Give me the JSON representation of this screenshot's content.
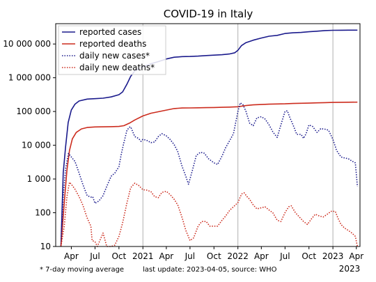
{
  "chart_data": {
    "type": "line",
    "title": "COVID-19 in Italy",
    "y_scale": "log",
    "ylim": [
      10,
      40000000
    ],
    "xlim": [
      "2020-02-01",
      "2023-04-15"
    ],
    "grid": "vertical lines at year boundaries",
    "legend_position": "top-left",
    "y_ticks": [
      {
        "value": 10,
        "label": "10"
      },
      {
        "value": 100,
        "label": "100"
      },
      {
        "value": 1000,
        "label": "1 000"
      },
      {
        "value": 10000,
        "label": "10 000"
      },
      {
        "value": 100000,
        "label": "100 000"
      },
      {
        "value": 1000000,
        "label": "1 000 000"
      },
      {
        "value": 10000000,
        "label": "10 000 000"
      }
    ],
    "x_ticks": [
      {
        "date": "2020-04-01",
        "label": "Apr"
      },
      {
        "date": "2020-07-01",
        "label": "Jul"
      },
      {
        "date": "2020-10-01",
        "label": "Oct"
      },
      {
        "date": "2021-01-01",
        "label": "2021"
      },
      {
        "date": "2021-04-01",
        "label": "Apr"
      },
      {
        "date": "2021-07-01",
        "label": "Jul"
      },
      {
        "date": "2021-10-01",
        "label": "Oct"
      },
      {
        "date": "2022-01-01",
        "label": "2022"
      },
      {
        "date": "2022-04-01",
        "label": "Apr"
      },
      {
        "date": "2022-07-01",
        "label": "Jul"
      },
      {
        "date": "2022-10-01",
        "label": "Oct"
      },
      {
        "date": "2023-01-01",
        "label": "2023"
      },
      {
        "date": "2023-04-01",
        "label": "Apr"
      }
    ],
    "x_axis_year_label": "2023",
    "series": [
      {
        "name": "reported cases",
        "color": "#1a1a8c",
        "style": "solid",
        "points": [
          [
            "2020-02-21",
            10
          ],
          [
            "2020-03-01",
            1500
          ],
          [
            "2020-03-10",
            9000
          ],
          [
            "2020-03-20",
            47000
          ],
          [
            "2020-04-01",
            110000
          ],
          [
            "2020-04-15",
            165000
          ],
          [
            "2020-05-01",
            205000
          ],
          [
            "2020-06-01",
            233000
          ],
          [
            "2020-07-01",
            240000
          ],
          [
            "2020-08-01",
            248000
          ],
          [
            "2020-09-01",
            270000
          ],
          [
            "2020-10-01",
            315000
          ],
          [
            "2020-10-15",
            380000
          ],
          [
            "2020-11-01",
            650000
          ],
          [
            "2020-11-15",
            1100000
          ],
          [
            "2020-12-01",
            1600000
          ],
          [
            "2021-01-01",
            2100000
          ],
          [
            "2021-02-01",
            2600000
          ],
          [
            "2021-03-01",
            3000000
          ],
          [
            "2021-04-01",
            3600000
          ],
          [
            "2021-05-01",
            4050000
          ],
          [
            "2021-06-01",
            4230000
          ],
          [
            "2021-07-01",
            4260000
          ],
          [
            "2021-08-01",
            4380000
          ],
          [
            "2021-09-01",
            4540000
          ],
          [
            "2021-10-01",
            4680000
          ],
          [
            "2021-11-01",
            4800000
          ],
          [
            "2021-12-01",
            5100000
          ],
          [
            "2021-12-20",
            5500000
          ],
          [
            "2022-01-01",
            6500000
          ],
          [
            "2022-01-15",
            9000000
          ],
          [
            "2022-02-01",
            11000000
          ],
          [
            "2022-03-01",
            13000000
          ],
          [
            "2022-04-01",
            15000000
          ],
          [
            "2022-05-01",
            17000000
          ],
          [
            "2022-06-01",
            18000000
          ],
          [
            "2022-07-01",
            20500000
          ],
          [
            "2022-08-01",
            21500000
          ],
          [
            "2022-09-01",
            22000000
          ],
          [
            "2022-10-01",
            23000000
          ],
          [
            "2022-11-01",
            24000000
          ],
          [
            "2022-12-01",
            25000000
          ],
          [
            "2023-01-01",
            25500000
          ],
          [
            "2023-02-01",
            25600000
          ],
          [
            "2023-03-01",
            25700000
          ],
          [
            "2023-04-05",
            25750000
          ]
        ]
      },
      {
        "name": "reported deaths",
        "color": "#cc2b1d",
        "style": "solid",
        "points": [
          [
            "2020-02-21",
            10
          ],
          [
            "2020-03-05",
            200
          ],
          [
            "2020-03-15",
            1800
          ],
          [
            "2020-03-25",
            7000
          ],
          [
            "2020-04-05",
            15500
          ],
          [
            "2020-04-20",
            24000
          ],
          [
            "2020-05-10",
            30500
          ],
          [
            "2020-06-01",
            33500
          ],
          [
            "2020-07-01",
            34800
          ],
          [
            "2020-09-01",
            35500
          ],
          [
            "2020-10-01",
            36000
          ],
          [
            "2020-10-20",
            38000
          ],
          [
            "2020-11-10",
            45000
          ],
          [
            "2020-12-01",
            56000
          ],
          [
            "2021-01-01",
            74000
          ],
          [
            "2021-02-01",
            89000
          ],
          [
            "2021-03-01",
            98000
          ],
          [
            "2021-04-01",
            110000
          ],
          [
            "2021-05-01",
            122000
          ],
          [
            "2021-06-01",
            127000
          ],
          [
            "2021-07-01",
            127800
          ],
          [
            "2021-08-01",
            128500
          ],
          [
            "2021-09-01",
            130000
          ],
          [
            "2021-10-01",
            131000
          ],
          [
            "2021-11-01",
            133000
          ],
          [
            "2021-12-01",
            135000
          ],
          [
            "2022-01-01",
            138000
          ],
          [
            "2022-02-01",
            150000
          ],
          [
            "2022-03-01",
            157000
          ],
          [
            "2022-04-01",
            161000
          ],
          [
            "2022-05-01",
            165000
          ],
          [
            "2022-06-01",
            167000
          ],
          [
            "2022-07-01",
            169000
          ],
          [
            "2022-08-01",
            173000
          ],
          [
            "2022-09-01",
            175000
          ],
          [
            "2022-10-01",
            177000
          ],
          [
            "2022-11-01",
            180000
          ],
          [
            "2022-12-01",
            183000
          ],
          [
            "2023-01-01",
            186000
          ],
          [
            "2023-02-01",
            187500
          ],
          [
            "2023-03-01",
            188500
          ],
          [
            "2023-04-05",
            189000
          ]
        ]
      },
      {
        "name": "daily new cases*",
        "color": "#1a1a8c",
        "style": "dotted",
        "points": [
          [
            "2020-02-21",
            10
          ],
          [
            "2020-03-01",
            300
          ],
          [
            "2020-03-10",
            2000
          ],
          [
            "2020-03-21",
            5700
          ],
          [
            "2020-04-01",
            4500
          ],
          [
            "2020-04-15",
            3300
          ],
          [
            "2020-05-01",
            1500
          ],
          [
            "2020-05-15",
            700
          ],
          [
            "2020-06-01",
            320
          ],
          [
            "2020-06-15",
            290
          ],
          [
            "2020-06-22",
            300
          ],
          [
            "2020-07-01",
            190
          ],
          [
            "2020-07-15",
            220
          ],
          [
            "2020-08-01",
            320
          ],
          [
            "2020-08-15",
            600
          ],
          [
            "2020-09-01",
            1200
          ],
          [
            "2020-09-15",
            1500
          ],
          [
            "2020-10-01",
            2300
          ],
          [
            "2020-10-10",
            5500
          ],
          [
            "2020-10-20",
            12000
          ],
          [
            "2020-11-01",
            28000
          ],
          [
            "2020-11-10",
            34000
          ],
          [
            "2020-11-15",
            35000
          ],
          [
            "2020-12-01",
            18000
          ],
          [
            "2020-12-15",
            16000
          ],
          [
            "2020-12-25",
            13000
          ],
          [
            "2021-01-01",
            15000
          ],
          [
            "2021-01-15",
            14000
          ],
          [
            "2021-02-01",
            12000
          ],
          [
            "2021-02-15",
            12500
          ],
          [
            "2021-03-01",
            18000
          ],
          [
            "2021-03-15",
            22000
          ],
          [
            "2021-04-01",
            19000
          ],
          [
            "2021-04-15",
            15000
          ],
          [
            "2021-05-01",
            10500
          ],
          [
            "2021-05-15",
            6500
          ],
          [
            "2021-06-01",
            2300
          ],
          [
            "2021-06-15",
            1200
          ],
          [
            "2021-06-25",
            700
          ],
          [
            "2021-07-10",
            1800
          ],
          [
            "2021-07-25",
            5000
          ],
          [
            "2021-08-10",
            6200
          ],
          [
            "2021-08-25",
            5800
          ],
          [
            "2021-09-10",
            4000
          ],
          [
            "2021-10-01",
            3000
          ],
          [
            "2021-10-15",
            2700
          ],
          [
            "2021-11-01",
            4800
          ],
          [
            "2021-11-15",
            8500
          ],
          [
            "2021-12-01",
            14000
          ],
          [
            "2021-12-15",
            22000
          ],
          [
            "2022-01-01",
            100000
          ],
          [
            "2022-01-10",
            180000
          ],
          [
            "2022-01-20",
            160000
          ],
          [
            "2022-02-01",
            100000
          ],
          [
            "2022-02-15",
            45000
          ],
          [
            "2022-03-01",
            38000
          ],
          [
            "2022-03-15",
            65000
          ],
          [
            "2022-04-01",
            70000
          ],
          [
            "2022-04-15",
            60000
          ],
          [
            "2022-05-01",
            40000
          ],
          [
            "2022-05-15",
            25000
          ],
          [
            "2022-06-01",
            17000
          ],
          [
            "2022-06-15",
            40000
          ],
          [
            "2022-07-01",
            100000
          ],
          [
            "2022-07-10",
            105000
          ],
          [
            "2022-07-20",
            65000
          ],
          [
            "2022-08-01",
            40000
          ],
          [
            "2022-08-15",
            21000
          ],
          [
            "2022-09-01",
            21000
          ],
          [
            "2022-09-10",
            16000
          ],
          [
            "2022-09-20",
            22000
          ],
          [
            "2022-10-01",
            40000
          ],
          [
            "2022-10-15",
            36000
          ],
          [
            "2022-11-01",
            24000
          ],
          [
            "2022-11-15",
            31000
          ],
          [
            "2022-12-01",
            30000
          ],
          [
            "2022-12-15",
            28000
          ],
          [
            "2023-01-01",
            15000
          ],
          [
            "2023-01-15",
            7000
          ],
          [
            "2023-02-01",
            4500
          ],
          [
            "2023-02-15",
            4200
          ],
          [
            "2023-03-01",
            4000
          ],
          [
            "2023-03-15",
            3400
          ],
          [
            "2023-03-28",
            3000
          ],
          [
            "2023-04-05",
            600
          ]
        ]
      },
      {
        "name": "daily new deaths*",
        "color": "#cc2b1d",
        "style": "dotted",
        "points": [
          [
            "2020-02-21",
            10
          ],
          [
            "2020-03-05",
            40
          ],
          [
            "2020-03-15",
            300
          ],
          [
            "2020-03-25",
            800
          ],
          [
            "2020-04-01",
            700
          ],
          [
            "2020-04-15",
            500
          ],
          [
            "2020-05-01",
            300
          ],
          [
            "2020-05-15",
            170
          ],
          [
            "2020-06-01",
            70
          ],
          [
            "2020-06-15",
            40
          ],
          [
            "2020-06-20",
            15
          ],
          [
            "2020-07-01",
            14
          ],
          [
            "2020-07-10",
            10
          ],
          [
            "2020-08-01",
            25
          ],
          [
            "2020-08-15",
            10
          ],
          [
            "2020-09-01",
            10
          ],
          [
            "2020-09-15",
            11
          ],
          [
            "2020-10-01",
            20
          ],
          [
            "2020-10-15",
            50
          ],
          [
            "2020-11-01",
            200
          ],
          [
            "2020-11-15",
            550
          ],
          [
            "2020-12-01",
            750
          ],
          [
            "2020-12-15",
            650
          ],
          [
            "2021-01-01",
            480
          ],
          [
            "2021-01-15",
            470
          ],
          [
            "2021-02-01",
            420
          ],
          [
            "2021-02-15",
            300
          ],
          [
            "2021-03-01",
            280
          ],
          [
            "2021-03-15",
            400
          ],
          [
            "2021-04-01",
            430
          ],
          [
            "2021-04-15",
            350
          ],
          [
            "2021-05-01",
            250
          ],
          [
            "2021-05-15",
            170
          ],
          [
            "2021-06-01",
            70
          ],
          [
            "2021-06-15",
            30
          ],
          [
            "2021-07-01",
            15
          ],
          [
            "2021-07-15",
            18
          ],
          [
            "2021-08-01",
            40
          ],
          [
            "2021-08-15",
            55
          ],
          [
            "2021-09-01",
            55
          ],
          [
            "2021-09-15",
            40
          ],
          [
            "2021-10-01",
            40
          ],
          [
            "2021-10-15",
            40
          ],
          [
            "2021-11-01",
            60
          ],
          [
            "2021-11-15",
            80
          ],
          [
            "2021-12-01",
            120
          ],
          [
            "2021-12-15",
            150
          ],
          [
            "2022-01-01",
            200
          ],
          [
            "2022-01-15",
            360
          ],
          [
            "2022-01-25",
            390
          ],
          [
            "2022-02-05",
            300
          ],
          [
            "2022-02-15",
            250
          ],
          [
            "2022-03-01",
            170
          ],
          [
            "2022-03-15",
            130
          ],
          [
            "2022-04-01",
            140
          ],
          [
            "2022-04-15",
            150
          ],
          [
            "2022-05-01",
            120
          ],
          [
            "2022-05-15",
            100
          ],
          [
            "2022-06-01",
            60
          ],
          [
            "2022-06-15",
            55
          ],
          [
            "2022-07-01",
            100
          ],
          [
            "2022-07-15",
            150
          ],
          [
            "2022-07-25",
            160
          ],
          [
            "2022-08-10",
            100
          ],
          [
            "2022-08-25",
            75
          ],
          [
            "2022-09-10",
            55
          ],
          [
            "2022-09-25",
            45
          ],
          [
            "2022-10-10",
            65
          ],
          [
            "2022-10-25",
            90
          ],
          [
            "2022-11-10",
            80
          ],
          [
            "2022-11-25",
            75
          ],
          [
            "2022-12-10",
            90
          ],
          [
            "2022-12-25",
            110
          ],
          [
            "2023-01-10",
            110
          ],
          [
            "2023-01-20",
            70
          ],
          [
            "2023-02-01",
            45
          ],
          [
            "2023-02-15",
            35
          ],
          [
            "2023-03-01",
            30
          ],
          [
            "2023-03-15",
            25
          ],
          [
            "2023-03-28",
            20
          ],
          [
            "2023-04-05",
            10
          ]
        ]
      }
    ]
  },
  "footnote_left": "* 7-day moving average",
  "footnote_right": "last update: 2023-04-05, source: WHO"
}
